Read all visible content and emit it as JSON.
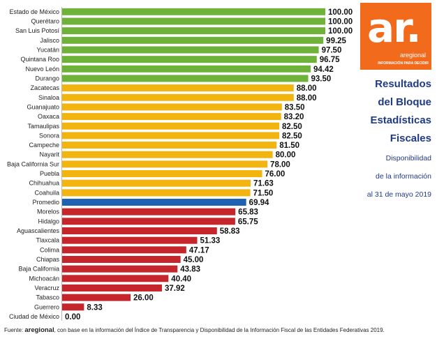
{
  "header": {
    "title_lines": [
      "Resultados",
      "del Bloque",
      "Estadísticas",
      "Fiscales"
    ],
    "subtitle_lines": [
      "Disponibilidad",
      "de la información",
      "al 31 de mayo 2019"
    ]
  },
  "logo": {
    "mark": "ar.",
    "brand": "aregional",
    "tagline": "INFORMACIÓN PARA DECIDIR",
    "color": "#f26b1d"
  },
  "footer": {
    "prefix": "Fuente: ",
    "source": "aregional",
    "text": ", con base en la información del Índice de Transparencia y Disponibilidad de la Información Fiscal de las Entidades Federativas 2019."
  },
  "colors": {
    "green": "#6fb23a",
    "yellow": "#f2b40f",
    "blue": "#1f62b4",
    "red": "#c4262b"
  },
  "chart_data": {
    "type": "bar",
    "orientation": "horizontal",
    "xlim": [
      0,
      100
    ],
    "categories": [
      "Estado de México",
      "Querétaro",
      "San Luis Potosí",
      "Jalisco",
      "Yucatán",
      "Quintana Roo",
      "Nuevo León",
      "Durango",
      "Zacatecas",
      "Sinaloa",
      "Guanajuato",
      "Oaxaca",
      "Tamaulipas",
      "Sonora",
      "Campeche",
      "Nayarit",
      "Baja California Sur",
      "Puebla",
      "Chihuahua",
      "Coahuila",
      "Promedio",
      "Morelos",
      "Hidalgo",
      "Aguascalientes",
      "Tlaxcala",
      "Colima",
      "Chiapas",
      "Baja California",
      "Michoacán",
      "Veracruz",
      "Tabasco",
      "Guerrero",
      "Ciudad de México"
    ],
    "values": [
      100.0,
      100.0,
      100.0,
      99.25,
      97.5,
      96.75,
      94.42,
      93.5,
      88.0,
      88.0,
      83.5,
      83.2,
      82.5,
      82.5,
      81.5,
      80.0,
      78.0,
      76.0,
      71.63,
      71.5,
      69.94,
      65.83,
      65.75,
      58.83,
      51.33,
      47.17,
      45.0,
      43.83,
      40.4,
      37.92,
      26.0,
      8.33,
      0.0
    ],
    "value_labels": [
      "100.00",
      "100.00",
      "100.00",
      "99.25",
      "97.50",
      "96.75",
      "94.42",
      "93.50",
      "88.00",
      "88.00",
      "83.50",
      "83.20",
      "82.50",
      "82.50",
      "81.50",
      "80.00",
      "78.00",
      "76.00",
      "71.63",
      "71.50",
      "69.94",
      "65.83",
      "65.75",
      "58.83",
      "51.33",
      "47.17",
      "45.00",
      "43.83",
      "40.40",
      "37.92",
      "26.00",
      "8.33",
      "0.00"
    ],
    "bar_colors": [
      "green",
      "green",
      "green",
      "green",
      "green",
      "green",
      "green",
      "green",
      "yellow",
      "yellow",
      "yellow",
      "yellow",
      "yellow",
      "yellow",
      "yellow",
      "yellow",
      "yellow",
      "yellow",
      "yellow",
      "yellow",
      "blue",
      "red",
      "red",
      "red",
      "red",
      "red",
      "red",
      "red",
      "red",
      "red",
      "red",
      "red",
      "red"
    ],
    "grid": false
  }
}
